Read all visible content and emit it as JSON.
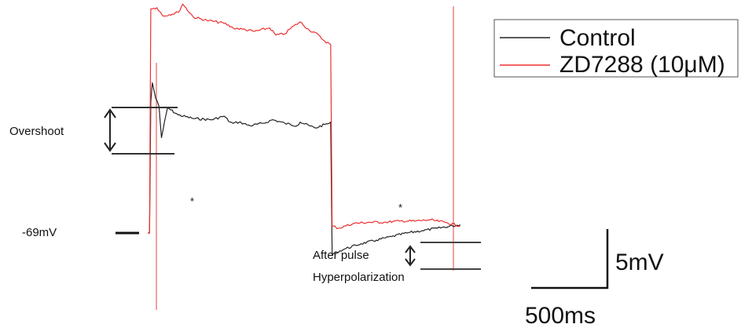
{
  "chart_data": {
    "type": "line",
    "title": "",
    "xlabel": "",
    "ylabel": "",
    "series": [
      {
        "name": "Control",
        "color": "#222222",
        "x": [
          0,
          12,
          20,
          30,
          44,
          52,
          64,
          74,
          90,
          130,
          200,
          300,
          420,
          500,
          540,
          560,
          600,
          670,
          760,
          820,
          900,
          980,
          1000,
          1060,
          1100,
          1160,
          1190,
          1200,
          1210,
          1240,
          1300,
          1400,
          1500,
          1600,
          1700,
          1800,
          1900,
          2000,
          2050
        ],
        "values": [
          0,
          0,
          11,
          12.6,
          11.8,
          11.3,
          11,
          10.6,
          8,
          10.5,
          9.9,
          9.6,
          9.5,
          9.8,
          9.3,
          9.2,
          9.3,
          9.0,
          9.2,
          9.5,
          9.2,
          9.0,
          9.3,
          9.0,
          8.8,
          9.1,
          9.2,
          9.3,
          -1.8,
          -1.6,
          -1.3,
          -0.9,
          -0.6,
          -0.3,
          0.0,
          0.2,
          0.4,
          0.6,
          0.7
        ]
      },
      {
        "name": "ZD7288 (10μM)",
        "color": "#ee3030",
        "x": [
          0,
          12,
          20,
          60,
          100,
          200,
          230,
          300,
          400,
          500,
          560,
          620,
          700,
          800,
          840,
          900,
          940,
          1000,
          1060,
          1100,
          1160,
          1200,
          1210,
          1250,
          1350,
          1450,
          1550,
          1650,
          1750,
          1850,
          1950,
          2050
        ],
        "values": [
          0,
          0,
          18.8,
          18.9,
          18.2,
          18.5,
          19.2,
          18.1,
          17.8,
          17.6,
          17.2,
          17.1,
          16.9,
          17.2,
          16.6,
          16.7,
          17.2,
          17.7,
          17.0,
          16.8,
          16.1,
          15.8,
          0.6,
          0.4,
          0.8,
          0.9,
          0.9,
          1.0,
          1.0,
          1.1,
          0.9,
          0.6
        ]
      }
    ],
    "units": {
      "x": "ms",
      "y": "mV"
    },
    "legend_position": "top-right",
    "annotations": {
      "baseline": "-69mV",
      "overshoot": "Overshoot",
      "afterpulse_line1": "After pulse",
      "afterpulse_line2": "Hyperpolarization",
      "asterisk": "*"
    },
    "scalebar": {
      "y_label": "5mV",
      "x_label": "500ms",
      "y_value": 5,
      "x_value": 500
    }
  }
}
